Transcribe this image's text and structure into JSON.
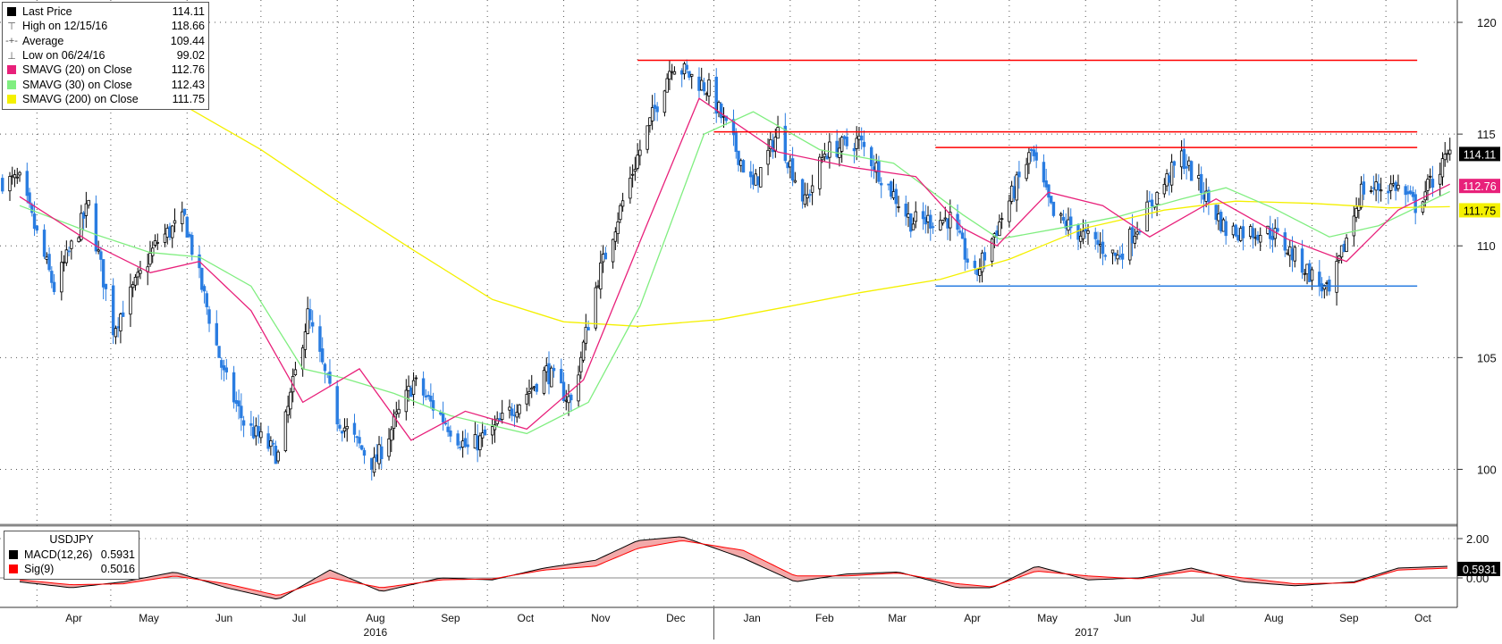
{
  "legend": {
    "items": [
      {
        "icon": "last-price-square-icon",
        "label": "Last Price",
        "value": "114.11",
        "color": "#000000"
      },
      {
        "icon": "high-marker-icon",
        "label": "High on 12/15/16",
        "value": "118.66"
      },
      {
        "icon": "average-marker-icon",
        "label": "Average",
        "value": "109.44"
      },
      {
        "icon": "low-marker-icon",
        "label": "Low on 06/24/16",
        "value": "99.02"
      },
      {
        "icon": "sma20-square-icon",
        "label": "SMAVG (20) on Close",
        "value": "112.76",
        "color": "#e8207a"
      },
      {
        "icon": "sma30-square-icon",
        "label": "SMAVG (30) on Close",
        "value": "112.43",
        "color": "#80ee80"
      },
      {
        "icon": "sma200-square-icon",
        "label": "SMAVG (200) on Close",
        "value": "111.75",
        "color": "#f4f000"
      }
    ]
  },
  "macd_legend": {
    "title": "USDJPY",
    "items": [
      {
        "icon": "macd-square-icon",
        "label": "MACD(12,26)",
        "value": "0.5931",
        "color": "#000000"
      },
      {
        "icon": "sig-square-icon",
        "label": "Sig(9)",
        "value": "0.5016",
        "color": "#ff0000"
      }
    ]
  },
  "price_tags": [
    {
      "value": "114.11",
      "bg": "#000000",
      "fg": "#ffffff"
    },
    {
      "value": "112.76",
      "bg": "#e8207a",
      "fg": "#ffffff"
    },
    {
      "value": "111.75",
      "bg": "#f4f000",
      "fg": "#000000"
    }
  ],
  "macd_tag": {
    "value": "0.5931",
    "bg": "#000000",
    "fg": "#ffffff"
  },
  "colors": {
    "up": "#000000",
    "down": "#2a7de1",
    "sma20": "#e8207a",
    "sma30": "#80ee80",
    "sma200": "#f4f000",
    "resistance": "#ff0000",
    "support": "#2a7de1",
    "macd": "#000000",
    "signal": "#ff0000",
    "histogram_fill": "#f2a0a0"
  },
  "chart_data": [
    {
      "type": "candlestick",
      "instrument": "USDJPY",
      "ylim": [
        97.5,
        121
      ],
      "yticks": [
        100,
        105,
        110,
        115,
        120
      ],
      "xticks": [
        "Apr",
        "May",
        "Jun",
        "Jul",
        "Aug",
        "Sep",
        "Oct",
        "Nov",
        "Dec",
        "Jan",
        "Feb",
        "Mar",
        "Apr",
        "May",
        "Jun",
        "Jul",
        "Aug",
        "Sep",
        "Oct"
      ],
      "year_labels": [
        "2016",
        "2017"
      ],
      "grid": true,
      "legend_position": "top-left",
      "last_price": 114.11,
      "high": {
        "date": "12/15/16",
        "value": 118.66
      },
      "average": 109.44,
      "low": {
        "date": "06/24/16",
        "value": 99.02
      },
      "horizontal_levels": [
        {
          "kind": "resistance",
          "value": 118.3,
          "from": "Dec 2016",
          "to": "Oct 2017"
        },
        {
          "kind": "resistance",
          "value": 115.1,
          "from": "Jan 2017",
          "to": "Oct 2017"
        },
        {
          "kind": "resistance",
          "value": 114.4,
          "from": "Apr 2017",
          "to": "Oct 2017"
        },
        {
          "kind": "support",
          "value": 108.2,
          "from": "Apr 2017",
          "to": "Oct 2017"
        }
      ],
      "close_path": [
        [
          "2016-03-25",
          112.9
        ],
        [
          "2016-04-08",
          108.1
        ],
        [
          "2016-04-22",
          111.8
        ],
        [
          "2016-05-02",
          106.3
        ],
        [
          "2016-05-20",
          110.2
        ],
        [
          "2016-05-31",
          111.2
        ],
        [
          "2016-06-16",
          104.2
        ],
        [
          "2016-06-24",
          102.1
        ],
        [
          "2016-07-08",
          100.6
        ],
        [
          "2016-07-20",
          106.9
        ],
        [
          "2016-08-01",
          102.3
        ],
        [
          "2016-08-16",
          100.2
        ],
        [
          "2016-09-01",
          103.9
        ],
        [
          "2016-09-23",
          100.9
        ],
        [
          "2016-10-03",
          101.7
        ],
        [
          "2016-10-25",
          104.4
        ],
        [
          "2016-11-04",
          103.0
        ],
        [
          "2016-11-15",
          108.6
        ],
        [
          "2016-12-01",
          114.0
        ],
        [
          "2016-12-15",
          118.2
        ],
        [
          "2016-12-30",
          117.0
        ],
        [
          "2017-01-17",
          112.6
        ],
        [
          "2017-01-27",
          115.1
        ],
        [
          "2017-02-07",
          111.9
        ],
        [
          "2017-02-15",
          114.2
        ],
        [
          "2017-03-01",
          114.7
        ],
        [
          "2017-03-22",
          111.1
        ],
        [
          "2017-04-07",
          111.2
        ],
        [
          "2017-04-17",
          108.6
        ],
        [
          "2017-05-10",
          114.2
        ],
        [
          "2017-05-19",
          111.3
        ],
        [
          "2017-06-14",
          109.5
        ],
        [
          "2017-07-10",
          114.0
        ],
        [
          "2017-07-28",
          110.7
        ],
        [
          "2017-08-16",
          110.6
        ],
        [
          "2017-09-08",
          107.8
        ],
        [
          "2017-09-21",
          112.5
        ],
        [
          "2017-10-05",
          112.7
        ],
        [
          "2017-10-13",
          111.8
        ],
        [
          "2017-10-27",
          114.11
        ]
      ],
      "sma20_path": [
        [
          "2016-03-25",
          112.2
        ],
        [
          "2016-04-25",
          110.0
        ],
        [
          "2016-05-17",
          108.8
        ],
        [
          "2016-06-06",
          109.3
        ],
        [
          "2016-06-27",
          107.1
        ],
        [
          "2016-07-18",
          103.0
        ],
        [
          "2016-08-10",
          104.5
        ],
        [
          "2016-08-31",
          101.3
        ],
        [
          "2016-09-22",
          102.6
        ],
        [
          "2016-10-17",
          101.8
        ],
        [
          "2016-11-09",
          104.0
        ],
        [
          "2016-12-05",
          111.0
        ],
        [
          "2016-12-26",
          116.6
        ],
        [
          "2017-01-27",
          114.2
        ],
        [
          "2017-02-27",
          113.5
        ],
        [
          "2017-03-24",
          113.1
        ],
        [
          "2017-04-12",
          110.8
        ],
        [
          "2017-04-26",
          110.0
        ],
        [
          "2017-05-17",
          112.4
        ],
        [
          "2017-06-08",
          111.8
        ],
        [
          "2017-06-27",
          110.4
        ],
        [
          "2017-07-24",
          112.1
        ],
        [
          "2017-08-22",
          110.3
        ],
        [
          "2017-09-15",
          109.3
        ],
        [
          "2017-10-06",
          111.6
        ],
        [
          "2017-10-27",
          112.76
        ]
      ],
      "sma30_path": [
        [
          "2016-03-25",
          111.8
        ],
        [
          "2016-04-25",
          110.5
        ],
        [
          "2016-05-17",
          109.7
        ],
        [
          "2016-06-06",
          109.5
        ],
        [
          "2016-06-27",
          108.2
        ],
        [
          "2016-07-18",
          104.5
        ],
        [
          "2016-08-03",
          104.1
        ],
        [
          "2016-08-24",
          103.4
        ],
        [
          "2016-09-16",
          102.4
        ],
        [
          "2016-10-17",
          101.6
        ],
        [
          "2016-11-11",
          103.0
        ],
        [
          "2016-12-02",
          107.3
        ],
        [
          "2016-12-28",
          115.0
        ],
        [
          "2017-01-17",
          116.0
        ],
        [
          "2017-02-13",
          114.3
        ],
        [
          "2017-03-15",
          113.7
        ],
        [
          "2017-04-12",
          111.4
        ],
        [
          "2017-04-27",
          110.3
        ],
        [
          "2017-05-22",
          110.8
        ],
        [
          "2017-06-14",
          111.3
        ],
        [
          "2017-07-10",
          112.1
        ],
        [
          "2017-07-28",
          112.6
        ],
        [
          "2017-08-16",
          111.7
        ],
        [
          "2017-09-08",
          110.4
        ],
        [
          "2017-09-28",
          110.9
        ],
        [
          "2017-10-27",
          112.43
        ]
      ],
      "sma200_path": [
        [
          "2016-03-25",
          120.6
        ],
        [
          "2016-05-02",
          118.0
        ],
        [
          "2016-06-01",
          116.2
        ],
        [
          "2016-07-01",
          114.3
        ],
        [
          "2016-08-01",
          112.0
        ],
        [
          "2016-09-01",
          109.8
        ],
        [
          "2016-10-03",
          107.6
        ],
        [
          "2016-11-01",
          106.6
        ],
        [
          "2016-12-01",
          106.4
        ],
        [
          "2017-01-03",
          106.7
        ],
        [
          "2017-02-01",
          107.3
        ],
        [
          "2017-03-01",
          107.9
        ],
        [
          "2017-04-03",
          108.5
        ],
        [
          "2017-05-01",
          109.4
        ],
        [
          "2017-06-01",
          110.8
        ],
        [
          "2017-07-03",
          111.6
        ],
        [
          "2017-08-01",
          112.0
        ],
        [
          "2017-09-01",
          111.9
        ],
        [
          "2017-10-02",
          111.7
        ],
        [
          "2017-10-27",
          111.75
        ]
      ]
    },
    {
      "type": "line",
      "title": "USDJPY",
      "ylim": [
        -1.5,
        2.5
      ],
      "yticks": [
        0.0,
        2.0
      ],
      "ytick_labels": [
        "0.00",
        "2.00"
      ],
      "series": [
        {
          "name": "MACD(12,26)",
          "values": [
            [
              "2016-03-25",
              -0.2
            ],
            [
              "2016-04-15",
              -0.5
            ],
            [
              "2016-05-06",
              -0.2
            ],
            [
              "2016-05-27",
              0.3
            ],
            [
              "2016-06-17",
              -0.5
            ],
            [
              "2016-07-08",
              -1.1
            ],
            [
              "2016-07-29",
              0.4
            ],
            [
              "2016-08-19",
              -0.7
            ],
            [
              "2016-09-12",
              0.0
            ],
            [
              "2016-10-03",
              -0.1
            ],
            [
              "2016-10-24",
              0.5
            ],
            [
              "2016-11-14",
              0.9
            ],
            [
              "2016-12-01",
              1.9
            ],
            [
              "2016-12-19",
              2.1
            ],
            [
              "2017-01-13",
              1.0
            ],
            [
              "2017-02-03",
              -0.2
            ],
            [
              "2017-02-24",
              0.2
            ],
            [
              "2017-03-17",
              0.3
            ],
            [
              "2017-04-10",
              -0.5
            ],
            [
              "2017-04-24",
              -0.5
            ],
            [
              "2017-05-12",
              0.6
            ],
            [
              "2017-06-02",
              -0.1
            ],
            [
              "2017-06-23",
              0.0
            ],
            [
              "2017-07-14",
              0.5
            ],
            [
              "2017-08-04",
              -0.2
            ],
            [
              "2017-08-25",
              -0.4
            ],
            [
              "2017-09-18",
              -0.2
            ],
            [
              "2017-10-06",
              0.5
            ],
            [
              "2017-10-27",
              0.5931
            ]
          ]
        },
        {
          "name": "Sig(9)",
          "values": [
            [
              "2016-03-25",
              -0.1
            ],
            [
              "2016-04-15",
              -0.35
            ],
            [
              "2016-05-06",
              -0.3
            ],
            [
              "2016-05-27",
              0.1
            ],
            [
              "2016-06-17",
              -0.3
            ],
            [
              "2016-07-08",
              -0.9
            ],
            [
              "2016-07-29",
              0.0
            ],
            [
              "2016-08-19",
              -0.5
            ],
            [
              "2016-09-12",
              -0.1
            ],
            [
              "2016-10-03",
              -0.05
            ],
            [
              "2016-10-24",
              0.4
            ],
            [
              "2016-11-14",
              0.6
            ],
            [
              "2016-12-01",
              1.5
            ],
            [
              "2016-12-19",
              1.9
            ],
            [
              "2017-01-13",
              1.4
            ],
            [
              "2017-02-03",
              0.1
            ],
            [
              "2017-02-24",
              0.1
            ],
            [
              "2017-03-17",
              0.25
            ],
            [
              "2017-04-10",
              -0.3
            ],
            [
              "2017-04-24",
              -0.45
            ],
            [
              "2017-05-12",
              0.35
            ],
            [
              "2017-06-02",
              0.1
            ],
            [
              "2017-06-23",
              -0.05
            ],
            [
              "2017-07-14",
              0.35
            ],
            [
              "2017-08-04",
              0.0
            ],
            [
              "2017-08-25",
              -0.3
            ],
            [
              "2017-09-18",
              -0.25
            ],
            [
              "2017-10-06",
              0.4
            ],
            [
              "2017-10-27",
              0.5016
            ]
          ]
        }
      ]
    }
  ]
}
